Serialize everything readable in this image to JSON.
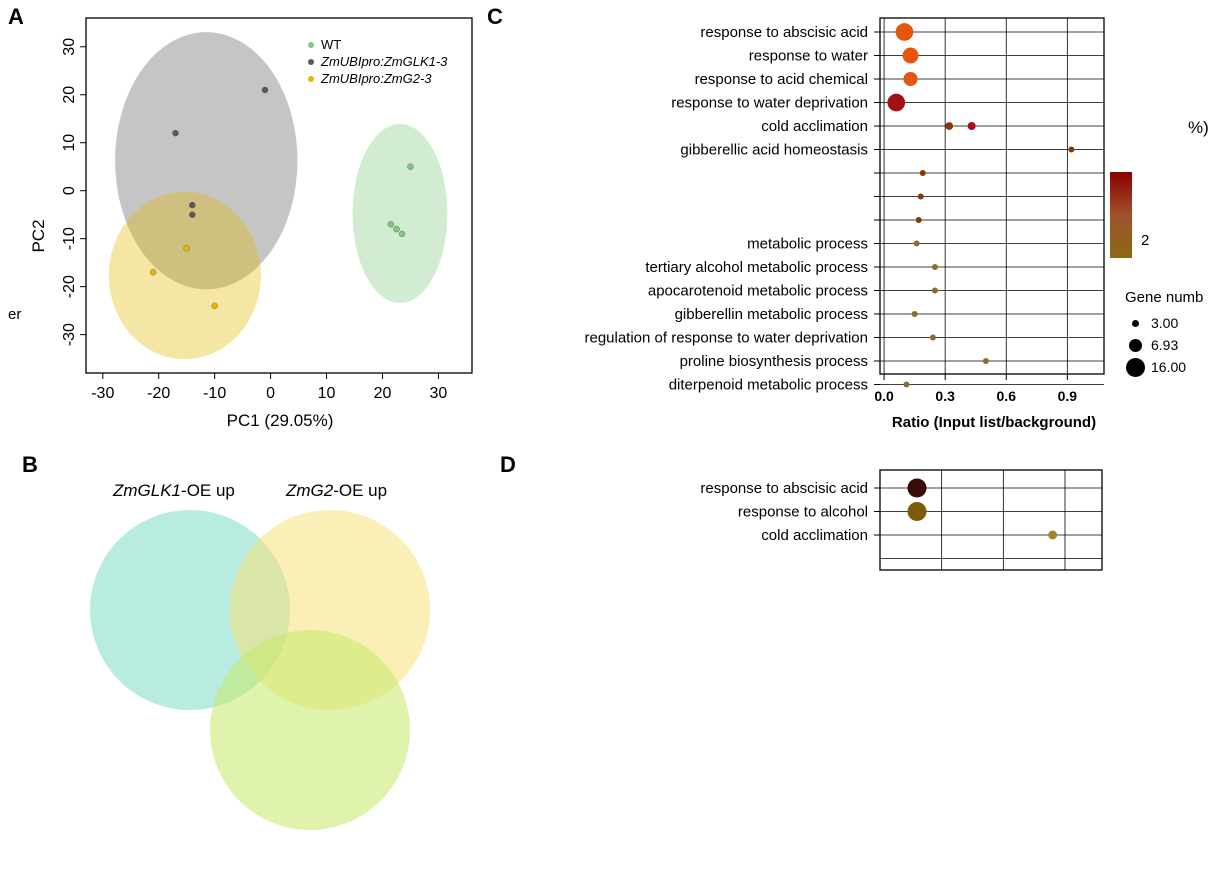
{
  "panels": {
    "a": {
      "letter": "A"
    },
    "b": {
      "letter": "B"
    },
    "c": {
      "letter": "C"
    },
    "d": {
      "letter": "D"
    }
  },
  "chart_data": [
    {
      "id": "A",
      "type": "scatter",
      "title": "",
      "xlabel": "PC1 (29.05%)",
      "ylabel": "PC2",
      "xlim": [
        -33,
        36
      ],
      "ylim": [
        -38,
        36
      ],
      "xticks": [
        -30,
        -20,
        -10,
        0,
        10,
        20,
        30
      ],
      "yticks": [
        -30,
        -20,
        -10,
        0,
        10,
        20,
        30
      ],
      "legend_position": "top-right",
      "legend_title": "",
      "legend_side_label": "er",
      "series": [
        {
          "name": "WT",
          "color": "#7fc97f",
          "points": [
            [
              21.5,
              -7
            ],
            [
              22.5,
              -8
            ],
            [
              25,
              5
            ],
            [
              23.5,
              -9
            ]
          ]
        },
        {
          "name": "ZmUBIpro:ZmGLK1-3",
          "color": "#595959",
          "points": [
            [
              -1,
              21
            ],
            [
              -17,
              12
            ],
            [
              -14,
              -3
            ],
            [
              -14,
              -5
            ]
          ]
        },
        {
          "name": "ZmUBIpro:ZmG2-3",
          "color": "#e6b800",
          "points": [
            [
              -21,
              -17
            ],
            [
              -10,
              -24
            ],
            [
              -15,
              -12
            ]
          ]
        }
      ]
    },
    {
      "id": "C",
      "type": "scatter",
      "title": "",
      "xlabel": "Ratio (Input list/background)",
      "ylabel": "",
      "xlim": [
        -0.02,
        1.08
      ],
      "xticks": [
        0.0,
        0.3,
        0.6,
        0.9
      ],
      "xtick_labels": [
        "0.0",
        "0.3",
        "0.6",
        "0.9"
      ],
      "categories": [
        "response to abscisic acid",
        "response to water",
        "response to acid chemical",
        "response to water deprivation",
        "cold acclimation",
        "gibberellic acid homeostasis",
        "",
        "",
        "",
        "metabolic process",
        "tertiary alcohol metabolic process",
        "apocarotenoid metabolic process",
        "gibberellin metabolic process",
        "regulation of response to water deprivation",
        "proline biosynthesis process",
        "diterpenoid metabolic process"
      ],
      "values": [
        0.1,
        0.13,
        0.13,
        0.06,
        0.32,
        0.92,
        0.19,
        0.18,
        0.17,
        0.16,
        0.25,
        0.25,
        0.15,
        0.24,
        0.5,
        0.11
      ],
      "secondary_points": [
        {
          "category": "cold acclimation",
          "value": 0.43
        }
      ],
      "sizes": [
        16,
        14,
        12,
        16,
        5,
        3,
        3,
        3,
        3,
        3,
        3,
        3,
        3,
        3,
        3,
        3
      ],
      "size_legend": {
        "title": "Gene numb",
        "labels": [
          "3.00",
          "6.93",
          "16.00"
        ]
      },
      "color_legend": {
        "labels": [
          "2"
        ]
      },
      "side_label": "%)"
    },
    {
      "id": "B",
      "type": "venn",
      "sets": [
        "ZmGLK1-OE up",
        "ZmG2-OE up"
      ],
      "set_titles": [
        {
          "italic": "ZmGLK1",
          "rest": "-OE up"
        },
        {
          "italic": "ZmG2",
          "rest": "-OE up"
        }
      ]
    },
    {
      "id": "D",
      "type": "scatter",
      "title": "",
      "xlabel": "",
      "categories": [
        "response to abscisic acid",
        "response to alcohol",
        "cold acclimation"
      ],
      "values": [
        0.18,
        0.18,
        0.84
      ],
      "sizes": [
        16,
        16,
        6
      ]
    }
  ]
}
